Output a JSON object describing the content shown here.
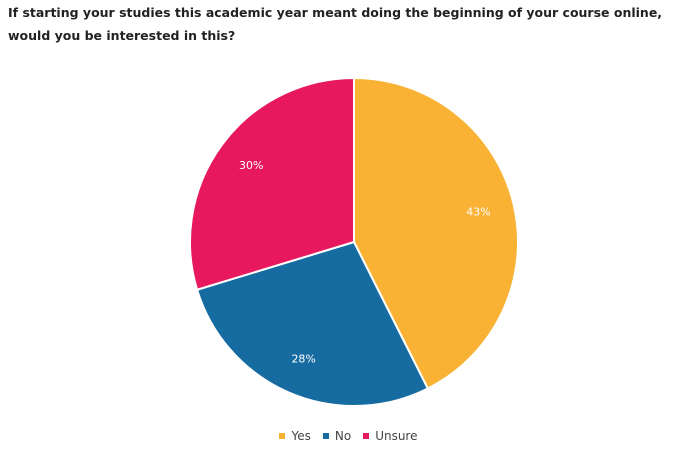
{
  "chart_data": {
    "type": "pie",
    "title": "If starting your studies this academic year meant doing the beginning of your course online, would you be interested in this?",
    "categories": [
      "Yes",
      "No",
      "Unsure"
    ],
    "values": [
      43,
      28,
      30
    ],
    "value_labels": [
      "43%",
      "28%",
      "30%"
    ],
    "colors": [
      "#f9b233",
      "#166ba0",
      "#e8185f"
    ],
    "legend": "bottom"
  }
}
